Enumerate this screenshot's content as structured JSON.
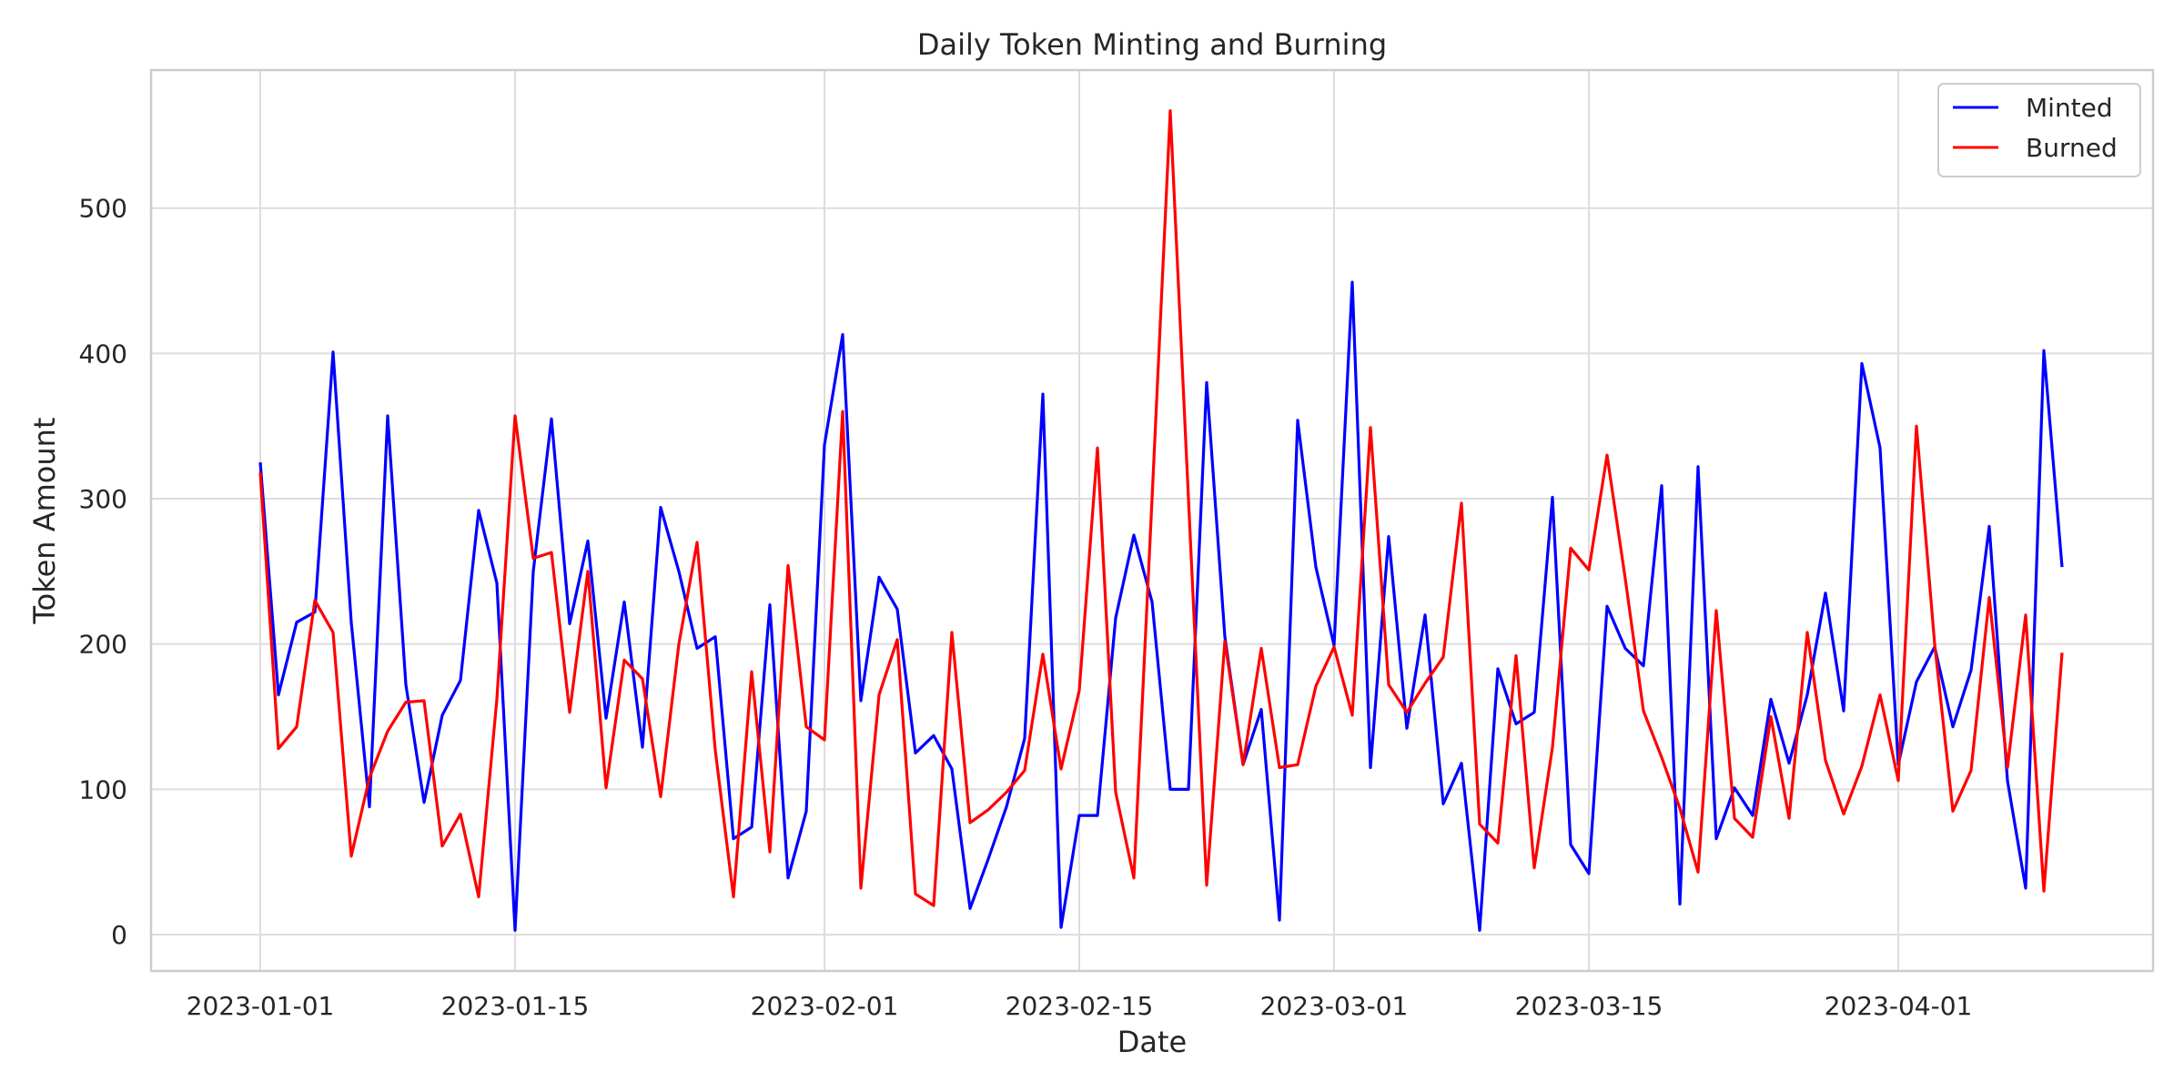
{
  "chart_data": {
    "type": "line",
    "title": "Daily Token Minting and Burning",
    "xlabel": "Date",
    "ylabel": "Token Amount",
    "x_start": "2023-01-01",
    "x_end": "2023-04-10",
    "xlim": [
      "2022-12-26",
      "2023-04-15"
    ],
    "ylim": [
      -25,
      595
    ],
    "x_ticks": [
      "2023-01-01",
      "2023-01-15",
      "2023-02-01",
      "2023-02-15",
      "2023-03-01",
      "2023-03-15",
      "2023-04-01"
    ],
    "y_ticks": [
      0,
      100,
      200,
      300,
      400,
      500
    ],
    "grid": true,
    "legend_position": "top-right",
    "series": [
      {
        "name": "Minted",
        "color": "#0000ff",
        "values": [
          325,
          165,
          215,
          222,
          401,
          215,
          88,
          357,
          172,
          91,
          151,
          175,
          292,
          242,
          3,
          250,
          355,
          214,
          271,
          149,
          229,
          129,
          294,
          250,
          197,
          205,
          66,
          74,
          227,
          39,
          85,
          337,
          413,
          161,
          246,
          224,
          125,
          137,
          114,
          18,
          52,
          88,
          135,
          372,
          5,
          82,
          82,
          218,
          275,
          229,
          100,
          100,
          380,
          205,
          117,
          155,
          10,
          354,
          253,
          199,
          449,
          115,
          274,
          142,
          220,
          90,
          118,
          3,
          183,
          145,
          153,
          301,
          62,
          42,
          226,
          197,
          185,
          309,
          21,
          322,
          66,
          101,
          82,
          162,
          118,
          165,
          235,
          154,
          393,
          335,
          117,
          174,
          198,
          143,
          182,
          281,
          106,
          32,
          402,
          253
        ]
      },
      {
        "name": "Burned",
        "color": "#ff0000",
        "values": [
          318,
          128,
          143,
          230,
          208,
          54,
          108,
          140,
          160,
          161,
          61,
          83,
          26,
          162,
          357,
          259,
          263,
          153,
          250,
          101,
          189,
          176,
          95,
          200,
          270,
          127,
          26,
          181,
          57,
          254,
          143,
          134,
          360,
          32,
          165,
          203,
          28,
          20,
          208,
          77,
          86,
          98,
          113,
          193,
          114,
          168,
          335,
          98,
          39,
          300,
          567,
          300,
          34,
          202,
          117,
          197,
          115,
          117,
          171,
          198,
          151,
          349,
          172,
          153,
          173,
          191,
          297,
          76,
          63,
          192,
          46,
          129,
          266,
          251,
          330,
          245,
          154,
          122,
          87,
          43,
          223,
          80,
          67,
          150,
          80,
          208,
          120,
          83,
          116,
          165,
          106,
          350,
          200,
          85,
          113,
          232,
          115,
          220,
          30,
          194
        ]
      }
    ]
  }
}
